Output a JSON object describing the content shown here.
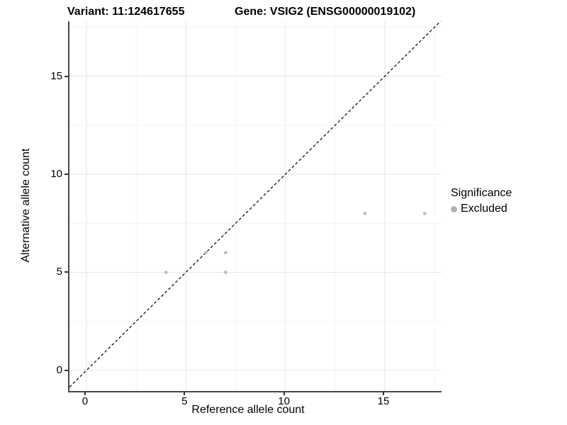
{
  "figure": {
    "titles": {
      "variant": "Variant: 11:124617655",
      "gene": "Gene: VSIG2 (ENSG00000019102)"
    }
  },
  "chart_data": {
    "type": "scatter",
    "title_left": "Variant: 11:124617655",
    "title_right": "Gene: VSIG2 (ENSG00000019102)",
    "xlabel": "Reference allele count",
    "ylabel": "Alternative allele count",
    "xlim": [
      -0.85,
      17.85
    ],
    "ylim": [
      -1.05,
      17.8
    ],
    "x_ticks": [
      0,
      5,
      10,
      15
    ],
    "y_ticks": [
      0,
      5,
      10,
      15
    ],
    "x_minor_ticks": [
      2.5,
      7.5,
      12.5,
      17.5
    ],
    "y_minor_ticks": [
      2.5,
      7.5,
      12.5,
      17.5
    ],
    "grid": {
      "major_color": "#e7e7e7",
      "minor_color": "#f4f4f4",
      "background": "#ffffff"
    },
    "reference_line": {
      "kind": "identity y=x",
      "style": "dashed",
      "color": "#000000"
    },
    "series": [
      {
        "name": "Excluded",
        "color": "#bdbdbd",
        "point_radius": 2.4,
        "points": [
          [
            4,
            5
          ],
          [
            6,
            6
          ],
          [
            7,
            6
          ],
          [
            7,
            5
          ],
          [
            14,
            8
          ],
          [
            17,
            8
          ]
        ]
      }
    ],
    "legend": {
      "title": "Significance",
      "position": "right",
      "items": [
        {
          "label": "Excluded",
          "color": "#b0b0b0"
        }
      ]
    }
  }
}
